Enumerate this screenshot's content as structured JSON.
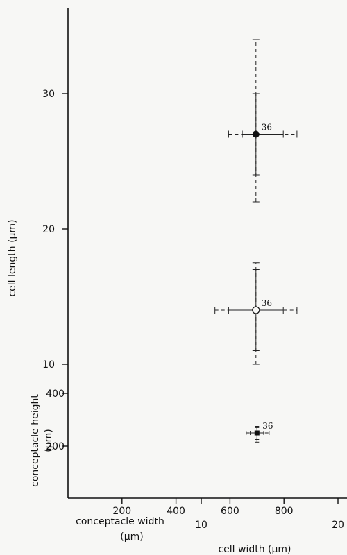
{
  "chart_data": {
    "type": "scatter",
    "x_axes": [
      {
        "label_lines": [
          "conceptacle  width",
          "(µm)"
        ],
        "ticks": [
          200,
          400,
          600,
          800
        ],
        "range": [
          0,
          1000
        ]
      },
      {
        "label": "cell  width (µm)",
        "ticks": [
          10,
          20
        ],
        "range": [
          5,
          20
        ]
      }
    ],
    "y_axes": [
      {
        "label": "cell  length (µm)",
        "ticks": [
          10,
          20,
          30
        ],
        "range": [
          0,
          35
        ]
      },
      {
        "label_lines": [
          "conceptacle  height",
          "(µm)"
        ],
        "ticks": [
          200,
          400
        ],
        "range": [
          -36,
          545
        ]
      }
    ],
    "points": [
      {
        "id": "solid",
        "marker": "filled-circle",
        "annotation": "36",
        "x": 14,
        "y": 27,
        "x_se": [
          13.0,
          16.0
        ],
        "x_sd": [
          12.0,
          17.0
        ],
        "y_se": [
          24.0,
          30.0
        ],
        "y_sd": [
          22.0,
          34.0
        ]
      },
      {
        "id": "open",
        "marker": "open-circle",
        "annotation": "36",
        "x": 14,
        "y": 14,
        "x_se": [
          12.0,
          16.0
        ],
        "x_sd": [
          11.0,
          17.0
        ],
        "y_se": [
          11.0,
          17.0
        ],
        "y_sd": [
          10.0,
          17.5
        ]
      },
      {
        "id": "square",
        "marker": "filled-square",
        "annotation": "36",
        "x": 700,
        "y": 250,
        "x_se": [
          675,
          725
        ],
        "x_sd": [
          660,
          745
        ],
        "y_se": [
          225,
          270
        ],
        "y_sd": [
          215,
          275
        ]
      }
    ]
  }
}
